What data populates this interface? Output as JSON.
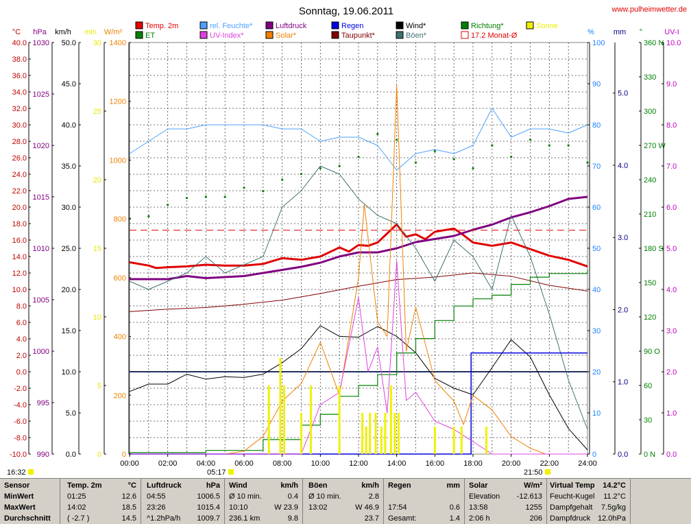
{
  "page": {
    "title": "Sonntag, 19.06.2011",
    "source": "www.pulheimwetter.de"
  },
  "chart_data": {
    "type": "line",
    "title": "Sonntag, 19.06.2011",
    "x_ticks": [
      "00:00",
      "02:00",
      "04:00",
      "06:00",
      "08:00",
      "10:00",
      "12:00",
      "14:00",
      "16:00",
      "18:00",
      "20:00",
      "22:00",
      "24:00"
    ],
    "x_range": [
      0,
      24
    ],
    "grid": true,
    "legend_placement": "top",
    "legend": [
      {
        "label": "Temp. 2m",
        "color": "#e00000",
        "filled": true
      },
      {
        "label": "rel. Feuchte*",
        "color": "#4ca0ff",
        "filled": true
      },
      {
        "label": "Luftdruck",
        "color": "#800080",
        "filled": true
      },
      {
        "label": "Regen",
        "color": "#0000e0",
        "filled": true
      },
      {
        "label": "Wind*",
        "color": "#000000",
        "filled": true
      },
      {
        "label": "Richtung*",
        "color": "#008000",
        "filled": true
      },
      {
        "label": "Sonne",
        "color": "#f0f000",
        "filled": true
      },
      {
        "label": "ET",
        "color": "#008000",
        "filled": true
      },
      {
        "label": "UV-Index*",
        "color": "#e040e0",
        "filled": true
      },
      {
        "label": "Solar*",
        "color": "#f08000",
        "filled": true
      },
      {
        "label": "Taupunkt*",
        "color": "#800000",
        "filled": true
      },
      {
        "label": "Böen*",
        "color": "#407070",
        "filled": true
      },
      {
        "label": "17.2 Monat-Ø",
        "color": "#e00000",
        "filled": false
      }
    ],
    "axes": {
      "temp": {
        "unit": "°C",
        "ticks": [
          "40.0",
          "38.0",
          "36.0",
          "34.0",
          "32.0",
          "30.0",
          "28.0",
          "26.0",
          "24.0",
          "22.0",
          "20.0",
          "18.0",
          "16.0",
          "14.0",
          "12.0",
          "10.0",
          "8.0",
          "6.0",
          "4.0",
          "2.0",
          "0.0",
          "-2.0",
          "-4.0",
          "-6.0",
          "-8.0",
          "-10.0"
        ],
        "range": [
          -10,
          40
        ],
        "color": "#c00000"
      },
      "pressure": {
        "unit": "hPa",
        "ticks": [
          "1030",
          "1025",
          "1020",
          "1015",
          "1010",
          "1005",
          "1000",
          "995",
          "990"
        ],
        "range": [
          990,
          1030
        ],
        "color": "#800080"
      },
      "wind": {
        "unit": "km/h",
        "ticks": [
          "50.0",
          "45.0",
          "40.0",
          "35.0",
          "30.0",
          "25.0",
          "20.0",
          "15.0",
          "10.0",
          "5.0",
          "0.0"
        ],
        "range": [
          0,
          50
        ],
        "color": "#000000"
      },
      "sun": {
        "unit": "min",
        "ticks": [
          "30",
          "25",
          "20",
          "15",
          "10",
          "5",
          "0"
        ],
        "range": [
          0,
          30
        ],
        "color": "#e8e800"
      },
      "solar": {
        "unit": "W/m²",
        "ticks": [
          "1400",
          "1200",
          "1000",
          "800",
          "600",
          "400",
          "200",
          "0"
        ],
        "range": [
          0,
          1400
        ],
        "color": "#f08000"
      },
      "humidity": {
        "unit": "%",
        "ticks": [
          "100",
          "90",
          "80",
          "70",
          "60",
          "50",
          "40",
          "30",
          "20",
          "10",
          "0"
        ],
        "range": [
          0,
          100
        ],
        "color": "#2080ff"
      },
      "rain": {
        "unit": "mm",
        "ticks": [
          "5.0",
          "4.0",
          "3.0",
          "2.0",
          "1.0",
          "0.0"
        ],
        "range": [
          0,
          5.7
        ],
        "color": "#000080"
      },
      "direction": {
        "unit": "°",
        "ticks": [
          "360 N",
          "330",
          "300",
          "270 W",
          "240",
          "210",
          "180 S",
          "150",
          "120",
          "90 O",
          "60",
          "30",
          "0 N"
        ],
        "range": [
          0,
          360
        ],
        "color": "#008000"
      },
      "uv": {
        "unit": "UV-I",
        "ticks": [
          "10.0",
          "9.0",
          "8.0",
          "7.0",
          "6.0",
          "5.0",
          "4.0",
          "3.0",
          "2.0",
          "1.0",
          "0.0"
        ],
        "range": [
          0,
          10
        ],
        "color": "#c000c0"
      }
    },
    "series": [
      {
        "name": "Temp. 2m",
        "axis": "temp",
        "color": "#e00000",
        "x": [
          0,
          1,
          1.4,
          2,
          3,
          4,
          5,
          6,
          7,
          8,
          9,
          10,
          11,
          11.5,
          12,
          12.5,
          13,
          13.5,
          14,
          14.5,
          15,
          15.5,
          16,
          17,
          17.5,
          18,
          19,
          20,
          21,
          22,
          23,
          24
        ],
        "values": [
          13.3,
          12.9,
          12.6,
          12.7,
          12.8,
          13.0,
          12.9,
          12.9,
          13.1,
          13.8,
          13.6,
          14.0,
          15.1,
          14.6,
          15.4,
          15.3,
          15.7,
          16.8,
          17.9,
          16.4,
          16.7,
          16.1,
          17.0,
          17.4,
          16.6,
          15.7,
          15.3,
          15.7,
          14.9,
          14.1,
          13.6,
          12.8
        ]
      },
      {
        "name": "rel. Feuchte*",
        "axis": "humidity",
        "color": "#4ca0ff",
        "x": [
          0,
          1,
          2,
          3,
          4,
          5,
          6,
          7,
          8,
          9,
          10,
          11,
          12,
          13,
          14,
          15,
          16,
          17,
          18,
          19,
          20,
          21,
          22,
          23,
          24
        ],
        "values": [
          73,
          76,
          79,
          79,
          80,
          80,
          80,
          80,
          79,
          79,
          76,
          77,
          77,
          75,
          69,
          73,
          74,
          73,
          75,
          84,
          77,
          79,
          79,
          78,
          80
        ]
      },
      {
        "name": "Luftdruck",
        "axis": "pressure",
        "color": "#800080",
        "x": [
          0,
          1,
          2,
          3,
          4,
          5,
          6,
          7,
          8,
          9,
          10,
          11,
          12,
          13,
          14,
          15,
          16,
          17,
          18,
          19,
          20,
          21,
          22,
          23,
          24
        ],
        "values": [
          1007.0,
          1007.0,
          1007.0,
          1007.3,
          1007.1,
          1007.2,
          1007.3,
          1007.6,
          1007.9,
          1008.2,
          1008.6,
          1009.2,
          1009.6,
          1009.6,
          1010.0,
          1010.6,
          1010.9,
          1011.2,
          1011.8,
          1012.3,
          1013.0,
          1013.5,
          1014.1,
          1014.8,
          1015.0
        ]
      },
      {
        "name": "Taupunkt*",
        "axis": "temp",
        "color": "#800000",
        "x": [
          0,
          2,
          4,
          6,
          8,
          10,
          12,
          14,
          16,
          18,
          20,
          22,
          24
        ],
        "values": [
          7.3,
          7.6,
          7.8,
          8.2,
          8.7,
          9.5,
          10.4,
          11.2,
          11.5,
          12.0,
          11.6,
          10.5,
          9.8
        ]
      },
      {
        "name": "Wind*",
        "axis": "wind",
        "color": "#000000",
        "x": [
          0,
          1,
          2,
          3,
          4,
          5,
          6,
          7,
          8,
          9,
          10,
          11,
          12,
          13,
          14,
          15,
          16,
          17,
          18,
          19,
          20,
          21,
          22,
          23,
          24
        ],
        "values": [
          7.6,
          8.5,
          8.5,
          9.7,
          9.1,
          9.4,
          9.3,
          9.7,
          11.1,
          12.8,
          15.6,
          14.3,
          14.2,
          15.5,
          14.3,
          12.3,
          9.2,
          8.0,
          7.2,
          10.5,
          13.9,
          11.8,
          7.2,
          3.1,
          0.5
        ]
      },
      {
        "name": "Böen*",
        "axis": "wind",
        "color": "#407070",
        "x": [
          0,
          1,
          2,
          3,
          4,
          5,
          6,
          7,
          8,
          9,
          10,
          11,
          12,
          13,
          14,
          15,
          16,
          17,
          18,
          19,
          20,
          21,
          22,
          23,
          24
        ],
        "values": [
          21,
          20,
          21,
          22,
          24,
          22,
          23,
          24,
          30,
          32,
          35,
          34,
          31,
          29,
          28,
          25,
          21,
          26,
          24,
          20,
          29,
          24,
          17,
          9,
          3
        ]
      },
      {
        "name": "Richtung*",
        "axis": "direction",
        "color": "#008000",
        "x": [
          0,
          1,
          2,
          3,
          4,
          5,
          6,
          7,
          8,
          9,
          10,
          11,
          12,
          13,
          14,
          15,
          16,
          17,
          18,
          19,
          20,
          21,
          22,
          23,
          24
        ],
        "values": [
          206,
          208,
          218,
          224,
          225,
          225,
          233,
          230,
          240,
          245,
          250,
          252,
          260,
          280,
          275,
          255,
          265,
          258,
          250,
          270,
          260,
          275,
          270,
          270,
          255
        ]
      },
      {
        "name": "ET",
        "axis": "rain",
        "color": "#008000",
        "x": [
          0,
          4,
          7,
          9,
          10,
          11,
          12,
          13,
          14,
          15,
          16,
          17,
          18,
          19,
          20,
          21,
          22,
          24
        ],
        "values": [
          0.02,
          0.05,
          0.2,
          0.4,
          0.55,
          0.8,
          0.95,
          1.1,
          1.4,
          1.6,
          1.85,
          2.05,
          2.15,
          2.2,
          2.35,
          2.45,
          2.5,
          2.55
        ]
      },
      {
        "name": "Regen",
        "axis": "rain",
        "color": "#0000e0",
        "x": [
          0,
          17.8,
          17.9,
          24
        ],
        "values": [
          0,
          0,
          1.4,
          1.4
        ]
      },
      {
        "name": "Solar*",
        "axis": "solar",
        "color": "#f08000",
        "x": [
          0,
          5,
          6,
          7,
          8,
          9,
          10,
          11,
          12,
          12.3,
          13,
          13.5,
          14,
          14.5,
          15,
          16,
          17,
          17.5,
          18,
          19,
          20,
          21,
          21.8,
          24
        ],
        "values": [
          0,
          0,
          10,
          60,
          180,
          240,
          380,
          200,
          600,
          850,
          450,
          400,
          1255,
          350,
          500,
          250,
          180,
          100,
          200,
          150,
          60,
          20,
          0,
          0
        ]
      },
      {
        "name": "UV-Index*",
        "axis": "uv",
        "color": "#e040e0",
        "x": [
          0,
          9,
          10,
          11,
          12,
          12.5,
          13,
          13.5,
          14,
          14.5,
          15,
          16,
          17,
          18,
          19,
          24
        ],
        "values": [
          0,
          0,
          1.2,
          1.5,
          3.8,
          2.0,
          2.6,
          1.0,
          4.7,
          1.3,
          1.5,
          0.8,
          0.6,
          0.3,
          0,
          0
        ]
      },
      {
        "name": "Sonne",
        "axis": "sun",
        "color": "#f0f000",
        "type": "bar",
        "x": [
          7.3,
          7.9,
          8.1,
          9.0,
          9.5,
          11.0,
          12.2,
          12.4,
          12.6,
          12.9,
          13.2,
          13.4,
          13.7,
          13.9,
          14.1,
          16.0,
          17.0,
          17.4,
          18.7
        ],
        "values": [
          5,
          7,
          5,
          3,
          5,
          5,
          3,
          2,
          3,
          3,
          2,
          3,
          5,
          3,
          3,
          2,
          2,
          2,
          2
        ]
      },
      {
        "name": "17.2 Monat-Ø",
        "axis": "temp",
        "color": "#e00000",
        "dashed": true,
        "x": [
          0,
          24
        ],
        "values": [
          17.2,
          17.2
        ]
      }
    ],
    "reference_line": {
      "axis": "wind",
      "value": 10.0,
      "color": "#203060"
    },
    "annotations": {
      "sunrise": "05:17",
      "sunset": "21:50",
      "now": "16:32"
    }
  },
  "stats": {
    "groups": [
      {
        "id": "sensor",
        "header": [
          "Sensor",
          ""
        ],
        "rows": [
          [
            "MinWert",
            ""
          ],
          [
            "MaxWert",
            ""
          ],
          [
            "Durchschnitt",
            ""
          ]
        ]
      },
      {
        "id": "temp",
        "header": [
          "Temp. 2m",
          "°C"
        ],
        "rows": [
          [
            "01:25",
            "12.6"
          ],
          [
            "14:02",
            "18.5"
          ],
          [
            "( -2.7 )",
            "14.5"
          ]
        ]
      },
      {
        "id": "luftdruck",
        "header": [
          "Luftdruck",
          "hPa"
        ],
        "rows": [
          [
            "04:55",
            "1006.5"
          ],
          [
            "23:26",
            "1015.4"
          ],
          [
            "^1.2hPa/h",
            "1009.7"
          ]
        ]
      },
      {
        "id": "wind",
        "header": [
          "Wind",
          "km/h"
        ],
        "rows": [
          [
            "Ø 10 min.",
            "0.4"
          ],
          [
            "10:10",
            "W 23.9"
          ],
          [
            "236.1 km",
            "9.8"
          ]
        ]
      },
      {
        "id": "boeen",
        "header": [
          "Böen",
          "km/h"
        ],
        "rows": [
          [
            "Ø 10 min.",
            "2.8"
          ],
          [
            "13:02",
            "W 46.9"
          ],
          [
            "",
            "23.7"
          ]
        ]
      },
      {
        "id": "regen",
        "header": [
          "Regen",
          "mm"
        ],
        "rows": [
          [
            "",
            ""
          ],
          [
            "17:54",
            "0.6"
          ],
          [
            "Gesamt:",
            "1.4"
          ]
        ]
      },
      {
        "id": "solar",
        "header": [
          "Solar",
          "W/m²"
        ],
        "rows": [
          [
            "Elevation",
            "-12.613"
          ],
          [
            "13:58",
            "1255"
          ],
          [
            "2:06 h",
            "206"
          ]
        ]
      },
      {
        "id": "misc",
        "header": [
          "Virtual Temp",
          "14.2°C"
        ],
        "rows": [
          [
            "Feucht-Kugel",
            "11.2°C"
          ],
          [
            "Dampfgehalt",
            "7.5g/kg"
          ],
          [
            "Dampfdruck",
            "12.0hPa"
          ]
        ]
      }
    ]
  }
}
